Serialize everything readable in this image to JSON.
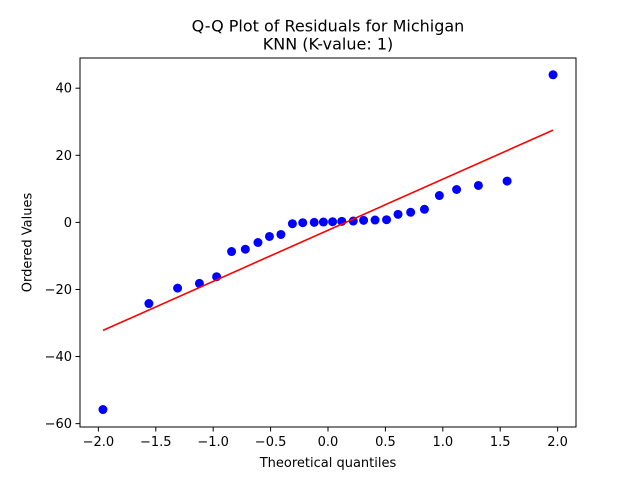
{
  "chart_data": {
    "type": "scatter",
    "title_lines": [
      "Q-Q Plot of Residuals for Michigan",
      "KNN (K-value: 1)"
    ],
    "xlabel": "Theoretical quantiles",
    "ylabel": "Ordered Values",
    "xlim": [
      -2.16,
      2.16
    ],
    "ylim": [
      -61,
      49
    ],
    "xticks": [
      -2.0,
      -1.5,
      -1.0,
      -0.5,
      0.0,
      0.5,
      1.0,
      1.5,
      2.0
    ],
    "xtick_labels": [
      "−2.0",
      "−1.5",
      "−1.0",
      "−0.5",
      "0.0",
      "0.5",
      "1.0",
      "1.5",
      "2.0"
    ],
    "yticks": [
      -60,
      -40,
      -20,
      0,
      20,
      40
    ],
    "ytick_labels": [
      "−60",
      "−40",
      "−20",
      "0",
      "20",
      "40"
    ],
    "grid": false,
    "point_color": "#0000ff",
    "line_color": "#ff0000",
    "fit_line": {
      "x": [
        -1.96,
        1.96
      ],
      "y": [
        -32.2,
        27.5
      ]
    },
    "points": [
      {
        "x": -1.96,
        "y": -55.8
      },
      {
        "x": -1.56,
        "y": -24.2
      },
      {
        "x": -1.31,
        "y": -19.6
      },
      {
        "x": -1.12,
        "y": -18.2
      },
      {
        "x": -0.97,
        "y": -16.2
      },
      {
        "x": -0.84,
        "y": -8.7
      },
      {
        "x": -0.72,
        "y": -8.0
      },
      {
        "x": -0.61,
        "y": -6.0
      },
      {
        "x": -0.51,
        "y": -4.2
      },
      {
        "x": -0.41,
        "y": -3.6
      },
      {
        "x": -0.31,
        "y": -0.4
      },
      {
        "x": -0.22,
        "y": -0.1
      },
      {
        "x": -0.12,
        "y": 0.0
      },
      {
        "x": -0.04,
        "y": 0.1
      },
      {
        "x": 0.04,
        "y": 0.2
      },
      {
        "x": 0.12,
        "y": 0.3
      },
      {
        "x": 0.22,
        "y": 0.4
      },
      {
        "x": 0.31,
        "y": 0.6
      },
      {
        "x": 0.41,
        "y": 0.7
      },
      {
        "x": 0.51,
        "y": 0.8
      },
      {
        "x": 0.61,
        "y": 2.4
      },
      {
        "x": 0.72,
        "y": 3.0
      },
      {
        "x": 0.84,
        "y": 3.9
      },
      {
        "x": 0.97,
        "y": 8.0
      },
      {
        "x": 1.12,
        "y": 9.8
      },
      {
        "x": 1.31,
        "y": 11.0
      },
      {
        "x": 1.56,
        "y": 12.3
      },
      {
        "x": 1.96,
        "y": 44.0
      }
    ]
  }
}
